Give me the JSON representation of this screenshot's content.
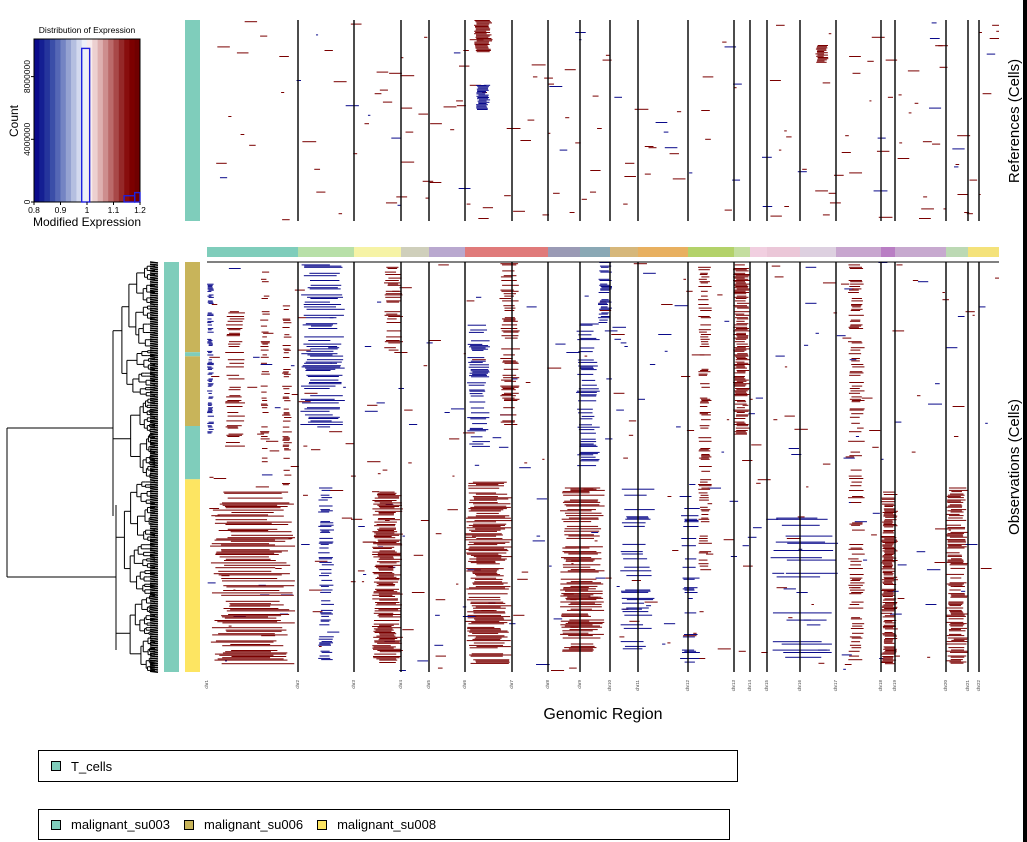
{
  "chart_data": {
    "type": "heatmap",
    "colors": {
      "low": "#0a0a8a",
      "mid": "#ffffff",
      "high": "#7a0000",
      "T_cells": "#7fcdbb",
      "malignant_su003": "#7fcdbb",
      "malignant_su006": "#c8b45a",
      "malignant_su008": "#fde562"
    },
    "histogram": {
      "title": "Distribution of Expression",
      "xlabel": "Modified Expression",
      "ylabel": "Count",
      "x_ticks": [
        "0.8",
        "0.9",
        "1",
        "1.1",
        "1.2"
      ],
      "y_ticks": [
        "0",
        "4000000",
        "8000000"
      ],
      "xlim": [
        0.8,
        1.2
      ],
      "ylim": [
        0,
        10400000
      ],
      "bins": [
        {
          "x0": 0.8,
          "x1": 0.98,
          "count": 0
        },
        {
          "x0": 0.98,
          "x1": 1.01,
          "count": 9800000
        },
        {
          "x0": 1.01,
          "x1": 1.14,
          "count": 0
        },
        {
          "x0": 1.14,
          "x1": 1.18,
          "count": 400000
        },
        {
          "x0": 1.18,
          "x1": 1.2,
          "count": 600000
        }
      ]
    },
    "references_label": "References (Cells)",
    "observations_label": "Observations (Cells)",
    "xlabel": "Genomic Region",
    "chromosomes": [
      "chr1",
      "chr2",
      "chr3",
      "chr4",
      "chr5",
      "chr6",
      "chr7",
      "chr8",
      "chr9",
      "chr10",
      "chr11",
      "chr12",
      "chr13",
      "chr14",
      "chr15",
      "chr16",
      "chr17",
      "chr18",
      "chr19",
      "chr20",
      "chr21",
      "chr22"
    ],
    "chromosome_bar_colors": [
      "#7fcdbb",
      "#b8e0a8",
      "#f6f3a6",
      "#cfcfbb",
      "#b9a8cf",
      "#e07a7a",
      "#e07a7a",
      "#9a9ab5",
      "#8aa8b5",
      "#d6b77a",
      "#e8b060",
      "#b3d26a",
      "#c4dea0",
      "#f1cfe0",
      "#ebc7d8",
      "#ddd0e0",
      "#c8a6cf",
      "#b97ec4",
      "#c7a9cf",
      "#bcd9b4",
      "#f4e27a",
      "#f4e27a"
    ],
    "observation_groups": [
      {
        "name": "malignant_su006",
        "fraction": 0.22
      },
      {
        "name": "malignant_su003",
        "fraction": 0.01
      },
      {
        "name": "malignant_su006",
        "fraction": 0.17
      },
      {
        "name": "malignant_su003",
        "fraction": 0.13
      },
      {
        "name": "malignant_su008",
        "fraction": 0.47
      }
    ],
    "legend_references": [
      "T_cells"
    ],
    "legend_observations": [
      "malignant_su003",
      "malignant_su006",
      "malignant_su008"
    ]
  }
}
